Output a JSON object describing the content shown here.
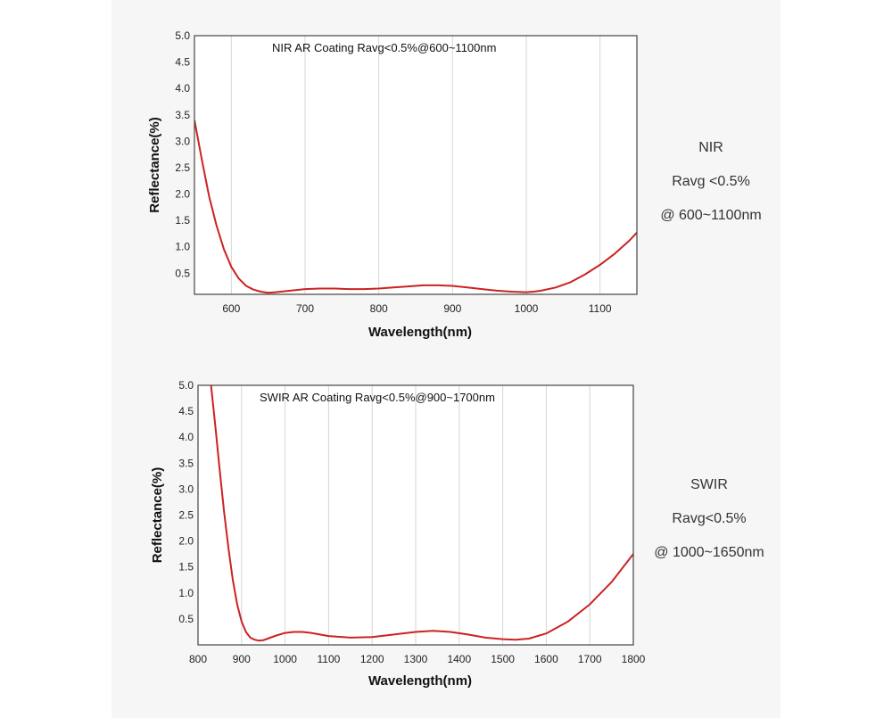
{
  "colors": {
    "curve": "#cc2222",
    "grid": "#d6d6d6",
    "frame": "#444444",
    "panel": "#f6f6f6"
  },
  "chart_data": [
    {
      "type": "line",
      "title": "NIR AR Coating Ravg<0.5%@600~1100nm",
      "xlabel": "Wavelength(nm)",
      "ylabel": "Reflectance(%)",
      "xlim": [
        550,
        1150
      ],
      "ylim": [
        0.1,
        5.0
      ],
      "xticks": [
        "600",
        "700",
        "800",
        "900",
        "1000",
        "1100"
      ],
      "yticks": [
        "0.5",
        "1.0",
        "1.5",
        "2.0",
        "2.5",
        "3.0",
        "3.5",
        "4.0",
        "4.5",
        "5.0"
      ],
      "grid": true,
      "series": [
        {
          "x": [
            550,
            560,
            570,
            580,
            590,
            600,
            610,
            620,
            630,
            640,
            650,
            660,
            680,
            700,
            720,
            740,
            760,
            780,
            800,
            820,
            840,
            860,
            880,
            900,
            920,
            940,
            960,
            980,
            1000,
            1010,
            1020,
            1040,
            1060,
            1080,
            1100,
            1120,
            1140,
            1150
          ],
          "y": [
            3.4,
            2.65,
            1.95,
            1.4,
            0.95,
            0.62,
            0.4,
            0.26,
            0.19,
            0.15,
            0.13,
            0.14,
            0.17,
            0.2,
            0.21,
            0.21,
            0.2,
            0.2,
            0.21,
            0.23,
            0.25,
            0.27,
            0.27,
            0.26,
            0.23,
            0.2,
            0.17,
            0.15,
            0.14,
            0.15,
            0.17,
            0.23,
            0.33,
            0.48,
            0.66,
            0.87,
            1.12,
            1.27
          ]
        }
      ]
    },
    {
      "type": "line",
      "title": "SWIR AR Coating Ravg<0.5%@900~1700nm",
      "xlabel": "Wavelength(nm)",
      "ylabel": "Reflectance(%)",
      "xlim": [
        800,
        1800
      ],
      "ylim": [
        0.0,
        5.0
      ],
      "xticks": [
        "800",
        "900",
        "1000",
        "1100",
        "1200",
        "1300",
        "1400",
        "1500",
        "1600",
        "1700",
        "1800"
      ],
      "yticks": [
        "0.5",
        "1.0",
        "1.5",
        "2.0",
        "2.5",
        "3.0",
        "3.5",
        "4.0",
        "4.5",
        "5.0"
      ],
      "grid": true,
      "series": [
        {
          "x": [
            830,
            840,
            850,
            860,
            870,
            880,
            890,
            900,
            910,
            920,
            930,
            940,
            950,
            960,
            980,
            1000,
            1020,
            1040,
            1060,
            1080,
            1100,
            1150,
            1200,
            1250,
            1300,
            1340,
            1380,
            1420,
            1460,
            1500,
            1530,
            1560,
            1600,
            1650,
            1700,
            1750,
            1800
          ],
          "y": [
            5.0,
            4.2,
            3.35,
            2.55,
            1.85,
            1.25,
            0.78,
            0.45,
            0.25,
            0.14,
            0.1,
            0.08,
            0.09,
            0.12,
            0.18,
            0.23,
            0.25,
            0.25,
            0.23,
            0.2,
            0.17,
            0.14,
            0.15,
            0.2,
            0.25,
            0.27,
            0.25,
            0.2,
            0.14,
            0.11,
            0.1,
            0.12,
            0.22,
            0.45,
            0.78,
            1.21,
            1.75
          ]
        }
      ]
    }
  ],
  "notes": [
    {
      "lines": [
        "NIR",
        "Ravg <0.5%",
        "@ 600~1100nm"
      ]
    },
    {
      "lines": [
        "SWIR",
        "Ravg<0.5%",
        "@ 1000~1650nm"
      ]
    }
  ]
}
